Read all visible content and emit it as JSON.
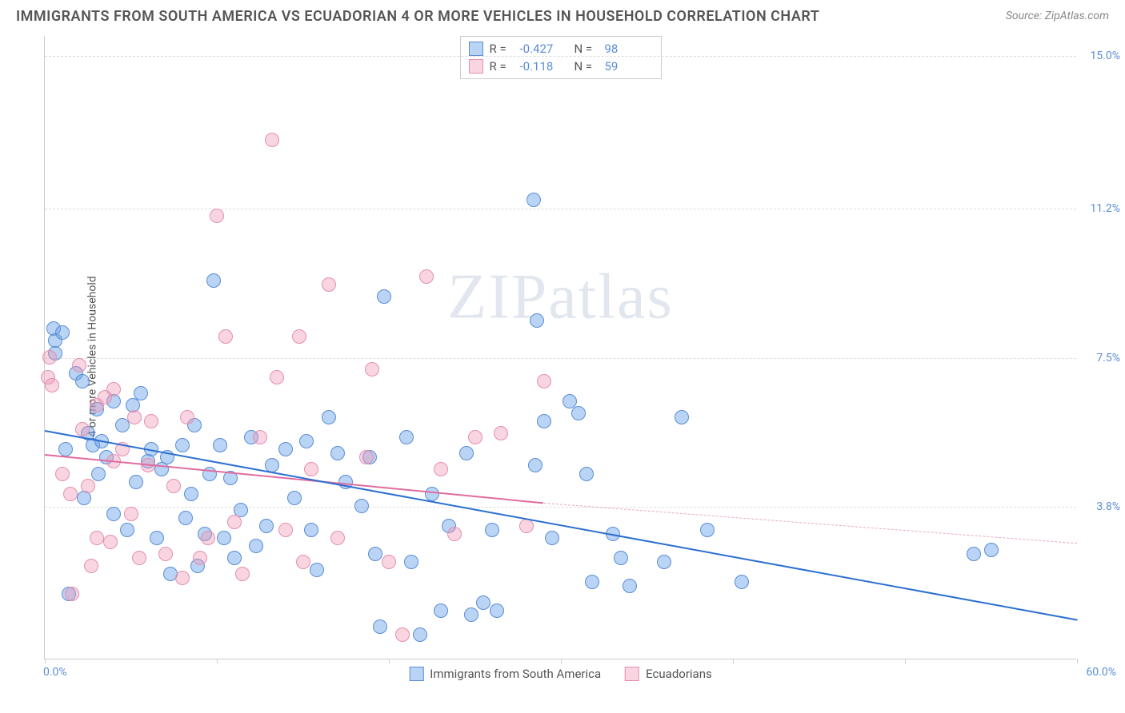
{
  "title": "IMMIGRANTS FROM SOUTH AMERICA VS ECUADORIAN 4 OR MORE VEHICLES IN HOUSEHOLD CORRELATION CHART",
  "source": "Source: ZipAtlas.com",
  "ylabel": "4 or more Vehicles in Household",
  "watermark": "ZIPatlas",
  "chart": {
    "type": "scatter",
    "xlim": [
      0,
      60
    ],
    "ylim": [
      0,
      15.5
    ],
    "x_min_label": "0.0%",
    "x_max_label": "60.0%",
    "y_gridlines": [
      3.8,
      7.5,
      11.2,
      15.0
    ],
    "y_grid_labels": [
      "3.8%",
      "7.5%",
      "11.2%",
      "15.0%"
    ],
    "x_ticks": [
      0,
      10,
      20,
      30,
      40,
      50,
      60
    ],
    "grid_color": "#dddddd",
    "background_color": "#ffffff",
    "axis_color": "#cccccc",
    "ytick_color": "#5b8dd6",
    "xtick_color": "#5b8dd6",
    "point_radius": 9,
    "point_opacity": 0.55,
    "series": [
      {
        "name": "Immigrants from South America",
        "color_fill": "rgba(100,160,230,0.45)",
        "color_stroke": "#5b8dd6",
        "R": "-0.427",
        "N": "98",
        "trend": {
          "x1": 0,
          "y1": 5.7,
          "x2": 60,
          "y2": 1.0,
          "color": "#2b6fd0",
          "width": 2.5,
          "dash": "none"
        },
        "points": [
          [
            0.5,
            8.2
          ],
          [
            0.6,
            7.9
          ],
          [
            0.6,
            7.6
          ],
          [
            1.0,
            8.1
          ],
          [
            1.2,
            5.2
          ],
          [
            1.4,
            1.6
          ],
          [
            1.8,
            7.1
          ],
          [
            2.2,
            6.9
          ],
          [
            2.3,
            4.0
          ],
          [
            2.5,
            5.6
          ],
          [
            2.8,
            5.3
          ],
          [
            3.0,
            6.2
          ],
          [
            3.1,
            4.6
          ],
          [
            3.3,
            5.4
          ],
          [
            3.6,
            5.0
          ],
          [
            4.0,
            6.4
          ],
          [
            4.0,
            3.6
          ],
          [
            4.5,
            5.8
          ],
          [
            4.8,
            3.2
          ],
          [
            5.1,
            6.3
          ],
          [
            5.3,
            4.4
          ],
          [
            5.6,
            6.6
          ],
          [
            6.0,
            4.9
          ],
          [
            6.2,
            5.2
          ],
          [
            6.5,
            3.0
          ],
          [
            6.8,
            4.7
          ],
          [
            7.1,
            5.0
          ],
          [
            7.3,
            2.1
          ],
          [
            8.0,
            5.3
          ],
          [
            8.2,
            3.5
          ],
          [
            8.5,
            4.1
          ],
          [
            8.7,
            5.8
          ],
          [
            8.9,
            2.3
          ],
          [
            9.3,
            3.1
          ],
          [
            9.6,
            4.6
          ],
          [
            9.8,
            9.4
          ],
          [
            10.2,
            5.3
          ],
          [
            10.4,
            3.0
          ],
          [
            10.8,
            4.5
          ],
          [
            11.0,
            2.5
          ],
          [
            11.4,
            3.7
          ],
          [
            12.0,
            5.5
          ],
          [
            12.3,
            2.8
          ],
          [
            12.9,
            3.3
          ],
          [
            13.2,
            4.8
          ],
          [
            14.0,
            5.2
          ],
          [
            14.5,
            4.0
          ],
          [
            15.2,
            5.4
          ],
          [
            15.5,
            3.2
          ],
          [
            15.8,
            2.2
          ],
          [
            16.5,
            6.0
          ],
          [
            17.0,
            5.1
          ],
          [
            17.5,
            4.4
          ],
          [
            18.4,
            3.8
          ],
          [
            18.9,
            5.0
          ],
          [
            19.2,
            2.6
          ],
          [
            19.5,
            0.8
          ],
          [
            19.7,
            9.0
          ],
          [
            21.0,
            5.5
          ],
          [
            21.3,
            2.4
          ],
          [
            21.8,
            0.6
          ],
          [
            22.5,
            4.1
          ],
          [
            23.0,
            1.2
          ],
          [
            23.5,
            3.3
          ],
          [
            24.5,
            5.1
          ],
          [
            24.8,
            1.1
          ],
          [
            25.5,
            1.4
          ],
          [
            26.0,
            3.2
          ],
          [
            26.3,
            1.2
          ],
          [
            28.4,
            11.4
          ],
          [
            28.5,
            4.8
          ],
          [
            28.6,
            8.4
          ],
          [
            29.0,
            5.9
          ],
          [
            29.5,
            3.0
          ],
          [
            30.5,
            6.4
          ],
          [
            31.0,
            6.1
          ],
          [
            31.5,
            4.6
          ],
          [
            31.8,
            1.9
          ],
          [
            33.0,
            3.1
          ],
          [
            33.5,
            2.5
          ],
          [
            34.0,
            1.8
          ],
          [
            36.0,
            2.4
          ],
          [
            37.0,
            6.0
          ],
          [
            38.5,
            3.2
          ],
          [
            40.5,
            1.9
          ],
          [
            54.0,
            2.6
          ],
          [
            55.0,
            2.7
          ]
        ]
      },
      {
        "name": "Ecuadorians",
        "color_fill": "rgba(240,150,180,0.40)",
        "color_stroke": "#e48fb0",
        "R": "-0.118",
        "N": "59",
        "trend_solid": {
          "x1": 0,
          "y1": 5.1,
          "x2": 29,
          "y2": 3.9,
          "color": "#e06c9f",
          "width": 2.5
        },
        "trend_dash": {
          "x1": 29,
          "y1": 3.9,
          "x2": 60,
          "y2": 2.9,
          "color": "#e8a8c0",
          "width": 1.5
        },
        "points": [
          [
            0.2,
            7.0
          ],
          [
            0.3,
            7.5
          ],
          [
            0.4,
            6.8
          ],
          [
            1.0,
            4.6
          ],
          [
            1.5,
            4.1
          ],
          [
            1.6,
            1.6
          ],
          [
            2.0,
            7.3
          ],
          [
            2.2,
            5.7
          ],
          [
            2.5,
            4.3
          ],
          [
            2.7,
            2.3
          ],
          [
            3.0,
            6.3
          ],
          [
            3.0,
            3.0
          ],
          [
            3.5,
            6.5
          ],
          [
            3.8,
            2.9
          ],
          [
            4.0,
            4.9
          ],
          [
            4.0,
            6.7
          ],
          [
            4.5,
            5.2
          ],
          [
            5.0,
            3.6
          ],
          [
            5.2,
            6.0
          ],
          [
            5.5,
            2.5
          ],
          [
            6.0,
            4.8
          ],
          [
            6.2,
            5.9
          ],
          [
            7.0,
            2.6
          ],
          [
            7.5,
            4.3
          ],
          [
            8.0,
            2.0
          ],
          [
            8.3,
            6.0
          ],
          [
            9.0,
            2.5
          ],
          [
            9.5,
            3.0
          ],
          [
            10.0,
            11.0
          ],
          [
            10.5,
            8.0
          ],
          [
            11.0,
            3.4
          ],
          [
            11.5,
            2.1
          ],
          [
            12.5,
            5.5
          ],
          [
            13.2,
            12.9
          ],
          [
            13.5,
            7.0
          ],
          [
            14.0,
            3.2
          ],
          [
            14.8,
            8.0
          ],
          [
            15.0,
            2.4
          ],
          [
            15.5,
            4.7
          ],
          [
            16.5,
            9.3
          ],
          [
            17.0,
            3.0
          ],
          [
            18.7,
            5.0
          ],
          [
            19.0,
            7.2
          ],
          [
            20.0,
            2.4
          ],
          [
            20.8,
            0.6
          ],
          [
            22.2,
            9.5
          ],
          [
            23.0,
            4.7
          ],
          [
            23.8,
            3.1
          ],
          [
            25.0,
            5.5
          ],
          [
            26.5,
            5.6
          ],
          [
            28.0,
            3.3
          ],
          [
            29.0,
            6.9
          ]
        ]
      }
    ]
  },
  "legend_top": {
    "R_label": "R =",
    "N_label": "N ="
  },
  "legend_bottom": [
    "Immigrants from South America",
    "Ecuadorians"
  ]
}
